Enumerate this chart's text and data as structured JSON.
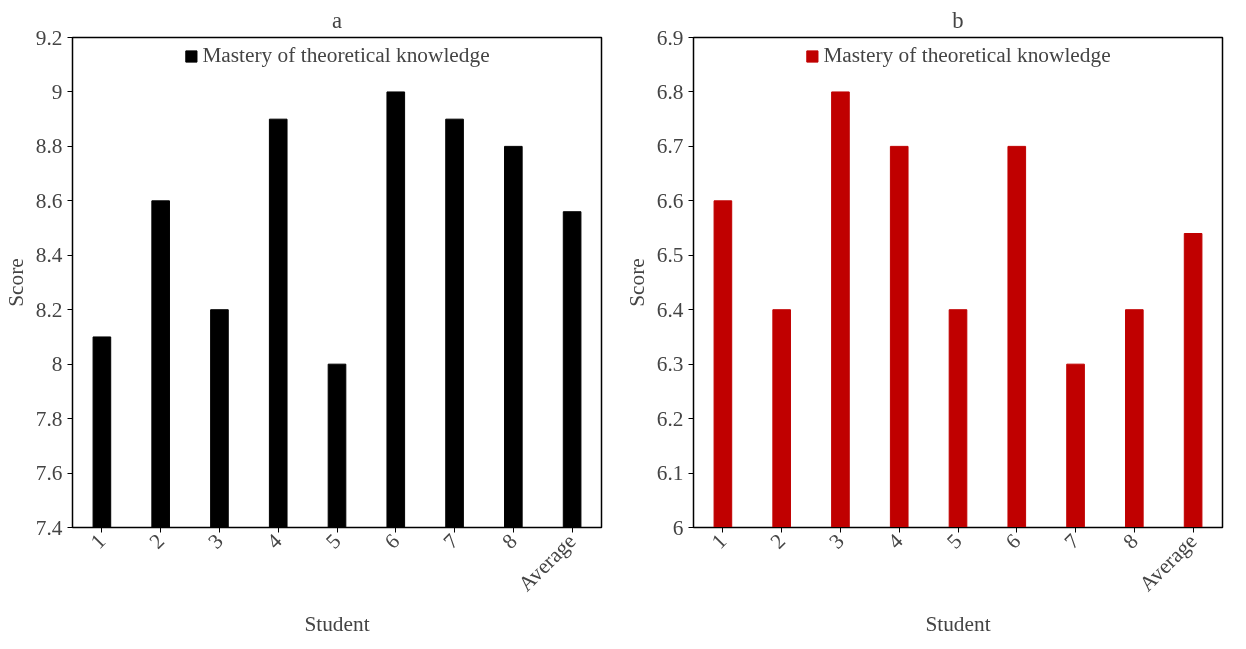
{
  "chart_data": [
    {
      "type": "bar",
      "title": "a",
      "xlabel": "Student",
      "ylabel": "Score",
      "categories": [
        "1",
        "2",
        "3",
        "4",
        "5",
        "6",
        "7",
        "8",
        "Average"
      ],
      "series": [
        {
          "name": "Mastery of theoretical knowledge",
          "color": "#000000",
          "values": [
            8.1,
            8.6,
            8.2,
            8.9,
            8.0,
            9.0,
            8.9,
            8.8,
            8.56
          ]
        }
      ],
      "ylim": [
        7.4,
        9.2
      ],
      "yticks": [
        7.4,
        7.6,
        7.8,
        8,
        8.2,
        8.4,
        8.6,
        8.8,
        9,
        9.2
      ],
      "grid": false,
      "legend": "top"
    },
    {
      "type": "bar",
      "title": "b",
      "xlabel": "Student",
      "ylabel": "Score",
      "categories": [
        "1",
        "2",
        "3",
        "4",
        "5",
        "6",
        "7",
        "8",
        "Average"
      ],
      "series": [
        {
          "name": "Mastery of theoretical knowledge",
          "color": "#c00000",
          "values": [
            6.6,
            6.4,
            6.8,
            6.7,
            6.4,
            6.7,
            6.3,
            6.4,
            6.54
          ]
        }
      ],
      "ylim": [
        6.0,
        6.9
      ],
      "yticks": [
        6,
        6.1,
        6.2,
        6.3,
        6.4,
        6.5,
        6.6,
        6.7,
        6.8,
        6.9
      ],
      "grid": false,
      "legend": "top"
    }
  ]
}
